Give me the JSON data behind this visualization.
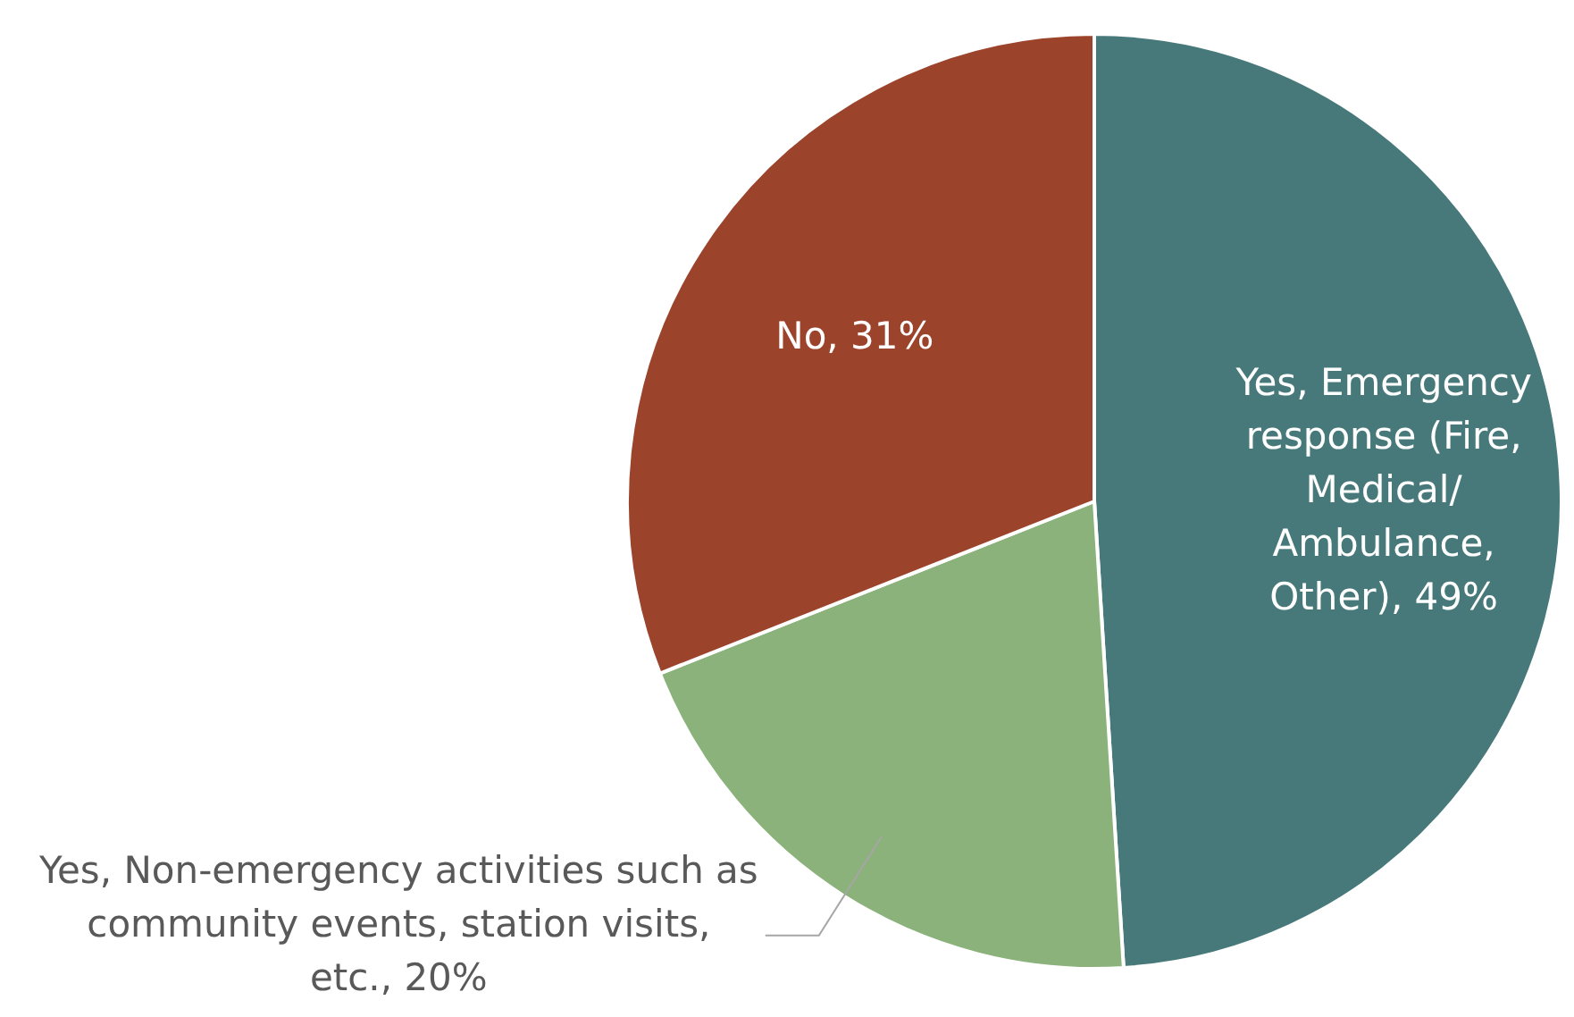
{
  "chart_data": {
    "type": "pie",
    "categories": [
      "Yes, Emergency response (Fire, Medical/Ambulance, Other)",
      "Yes, Non-emergency activities such as community events, station visits, etc.",
      "No"
    ],
    "values": [
      49,
      20,
      31
    ],
    "value_labels": [
      "49%",
      "20%",
      "31%"
    ],
    "colors": [
      "#47797a",
      "#8ab27a",
      "#9c432c"
    ],
    "legend": false
  }
}
